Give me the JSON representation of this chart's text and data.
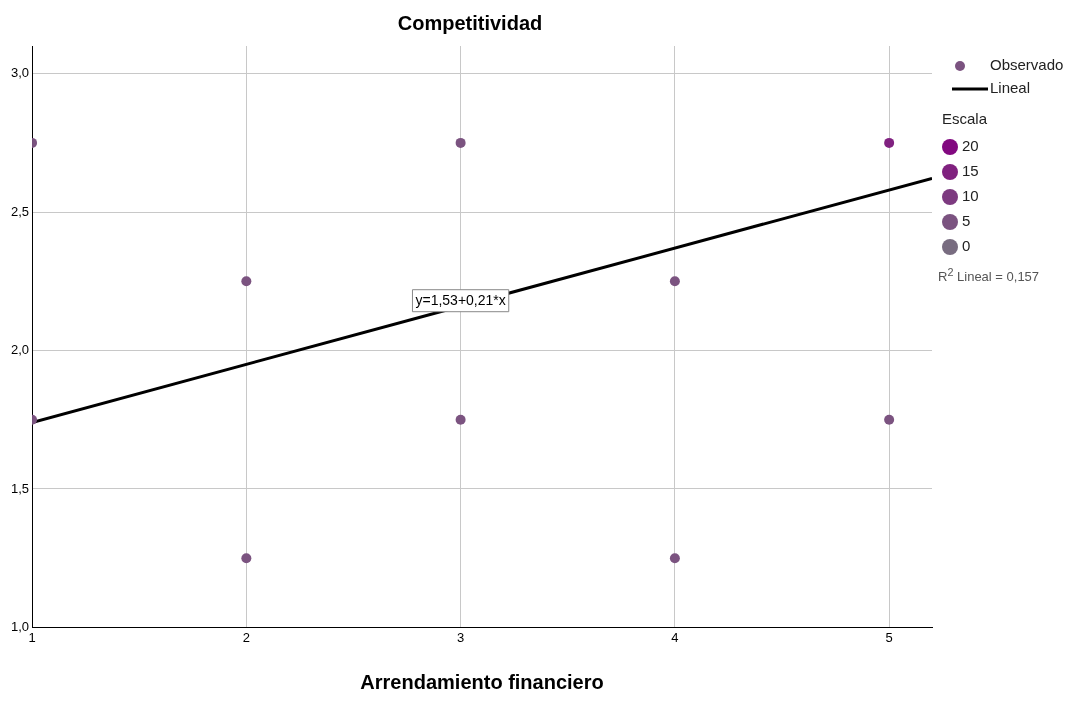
{
  "chart_data": {
    "type": "scatter",
    "title": "Competitividad",
    "xlabel": "Arrendamiento financiero",
    "xlim": [
      1,
      5.2
    ],
    "xticks": [
      1,
      2,
      3,
      4,
      5
    ],
    "ylim": [
      1,
      3.1
    ],
    "yticks": [
      {
        "value": 1,
        "label": "1,0"
      },
      {
        "value": 1.5,
        "label": "1,5"
      },
      {
        "value": 2,
        "label": "2,0"
      },
      {
        "value": 2.5,
        "label": "2,5"
      },
      {
        "value": 3,
        "label": "3,0"
      }
    ],
    "grid": true,
    "legend": "top right",
    "marker": "circle",
    "legend_title": "Escala",
    "series": [
      {
        "name": "Observado",
        "colors": [
          "#7b5380",
          "#7b5380",
          "#7b5380",
          "#7b5380",
          "#7b5380",
          "#7b5380",
          "#7b5380",
          "#7b5380",
          "#802180",
          "#7b5380"
        ],
        "x": [
          1,
          1,
          2,
          2,
          3,
          3,
          4,
          4,
          5,
          5
        ],
        "values": [
          2.75,
          1.75,
          2.25,
          1.25,
          2.75,
          1.75,
          2.25,
          1.25,
          2.75,
          1.75
        ]
      },
      {
        "name": "Lineal",
        "type": "line",
        "marker": "none",
        "color": "#000000",
        "x": [
          1,
          5.2
        ],
        "values": [
          1.74,
          2.622
        ]
      },
      {
        "name": "20",
        "color": "#820880"
      },
      {
        "name": "15",
        "color": "#80217f"
      },
      {
        "name": "10",
        "color": "#7d3a80"
      },
      {
        "name": "5",
        "color": "#7b5380"
      },
      {
        "name": "0",
        "color": "#786c80"
      }
    ],
    "annotations": [
      {
        "text": "y=1,53+0,21*x",
        "x": 3,
        "y": 2.18
      },
      "R$^{2}$ Lineal = 0,157"
    ]
  }
}
